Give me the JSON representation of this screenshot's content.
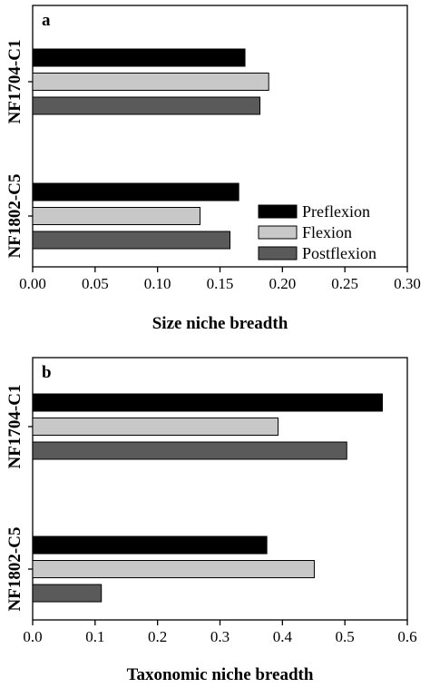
{
  "chart_data": [
    {
      "type": "bar",
      "orientation": "horizontal",
      "panel_label": "a",
      "categories": [
        "NF1704-C1",
        "NF1802-C5"
      ],
      "series": [
        {
          "name": "Preflexion",
          "color": "#000000",
          "values": [
            0.17,
            0.165
          ]
        },
        {
          "name": "Flexion",
          "color": "#c8c8c8",
          "values": [
            0.189,
            0.134
          ]
        },
        {
          "name": "Postflexion",
          "color": "#5a5a5a",
          "values": [
            0.182,
            0.158
          ]
        }
      ],
      "xlabel": "Size niche breadth",
      "ylabel": "",
      "xlim": [
        0,
        0.3
      ],
      "xticks": [
        "0.00",
        "0.05",
        "0.10",
        "0.15",
        "0.20",
        "0.25",
        "0.30"
      ],
      "legend_position": "lower-right",
      "grid": false
    },
    {
      "type": "bar",
      "orientation": "horizontal",
      "panel_label": "b",
      "categories": [
        "NF1704-C1",
        "NF1802-C5"
      ],
      "series": [
        {
          "name": "Preflexion",
          "color": "#000000",
          "values": [
            0.56,
            0.375
          ]
        },
        {
          "name": "Flexion",
          "color": "#c8c8c8",
          "values": [
            0.393,
            0.451
          ]
        },
        {
          "name": "Postflexion",
          "color": "#5a5a5a",
          "values": [
            0.503,
            0.11
          ]
        }
      ],
      "xlabel": "Taxonomic niche breadth",
      "ylabel": "",
      "xlim": [
        0,
        0.6
      ],
      "xticks": [
        "0.0",
        "0.1",
        "0.2",
        "0.3",
        "0.4",
        "0.5",
        "0.6"
      ],
      "legend_position": "none",
      "grid": false
    }
  ]
}
